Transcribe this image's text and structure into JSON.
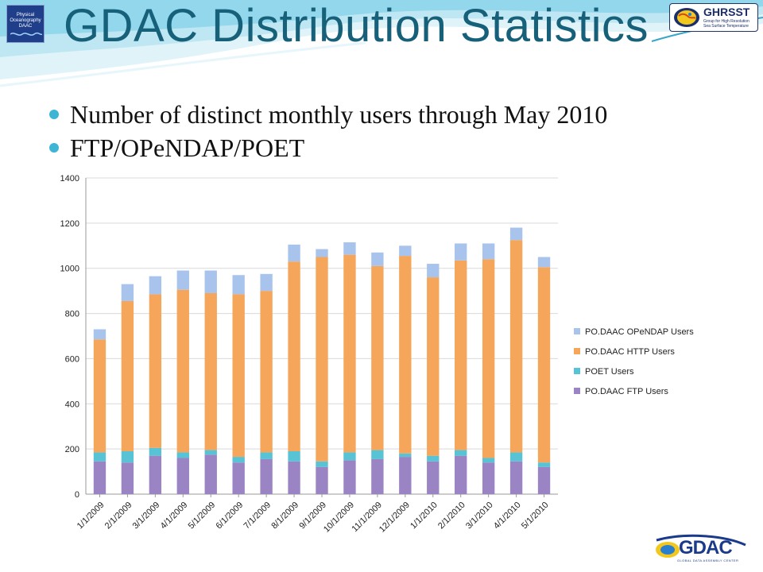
{
  "slide": {
    "title": "GDAC Distribution Statistics",
    "bullets": [
      "Number of distinct monthly users through May 2010",
      "FTP/OPeNDAP/POET"
    ],
    "logos": {
      "left": {
        "lines": [
          "Physical",
          "Oceanography",
          "DAAC"
        ]
      },
      "right": {
        "word": "GHRSST",
        "tagline": "Group for High Resolution Sea Surface Temperature"
      },
      "bottom": {
        "word": "GDAC",
        "tagline": "GLOBAL DATA ASSEMBLY CENTER"
      }
    },
    "colors": {
      "title": "#17607a",
      "bullet": "#3fb5d6",
      "header_wave_light": "#bfe7f3",
      "header_wave_mid": "#7fd0e8"
    }
  },
  "chart_data": {
    "type": "bar",
    "stacked": true,
    "title": "",
    "xlabel": "",
    "ylabel": "",
    "ylim": [
      0,
      1400
    ],
    "yticks": [
      0,
      200,
      400,
      600,
      800,
      1000,
      1200,
      1400
    ],
    "grid": true,
    "legend_position": "right",
    "categories": [
      "1/1/2009",
      "2/1/2009",
      "3/1/2009",
      "4/1/2009",
      "5/1/2009",
      "6/1/2009",
      "7/1/2009",
      "8/1/2009",
      "9/1/2009",
      "10/1/2009",
      "11/1/2009",
      "12/1/2009",
      "1/1/2010",
      "2/1/2010",
      "3/1/2010",
      "4/1/2010",
      "5/1/2010"
    ],
    "series": [
      {
        "name": "PO.DAAC FTP Users",
        "color": "#9b84c4",
        "values": [
          145,
          140,
          170,
          160,
          175,
          140,
          155,
          145,
          120,
          150,
          155,
          165,
          145,
          170,
          140,
          145,
          120
        ]
      },
      {
        "name": "POET Users",
        "color": "#58c3d4",
        "values": [
          40,
          50,
          35,
          25,
          20,
          25,
          30,
          45,
          25,
          35,
          40,
          15,
          25,
          25,
          20,
          40,
          20
        ]
      },
      {
        "name": "PO.DAAC HTTP Users",
        "color": "#f5a65b",
        "values": [
          500,
          665,
          680,
          720,
          695,
          720,
          715,
          840,
          905,
          875,
          815,
          875,
          790,
          840,
          880,
          940,
          865
        ]
      },
      {
        "name": "PO.DAAC OPeNDAP Users",
        "color": "#a9c4ec",
        "values": [
          45,
          75,
          80,
          85,
          100,
          85,
          75,
          75,
          35,
          55,
          60,
          45,
          60,
          75,
          70,
          55,
          45
        ]
      }
    ],
    "legend_order": [
      "PO.DAAC OPeNDAP Users",
      "PO.DAAC HTTP Users",
      "POET Users",
      "PO.DAAC FTP Users"
    ]
  }
}
